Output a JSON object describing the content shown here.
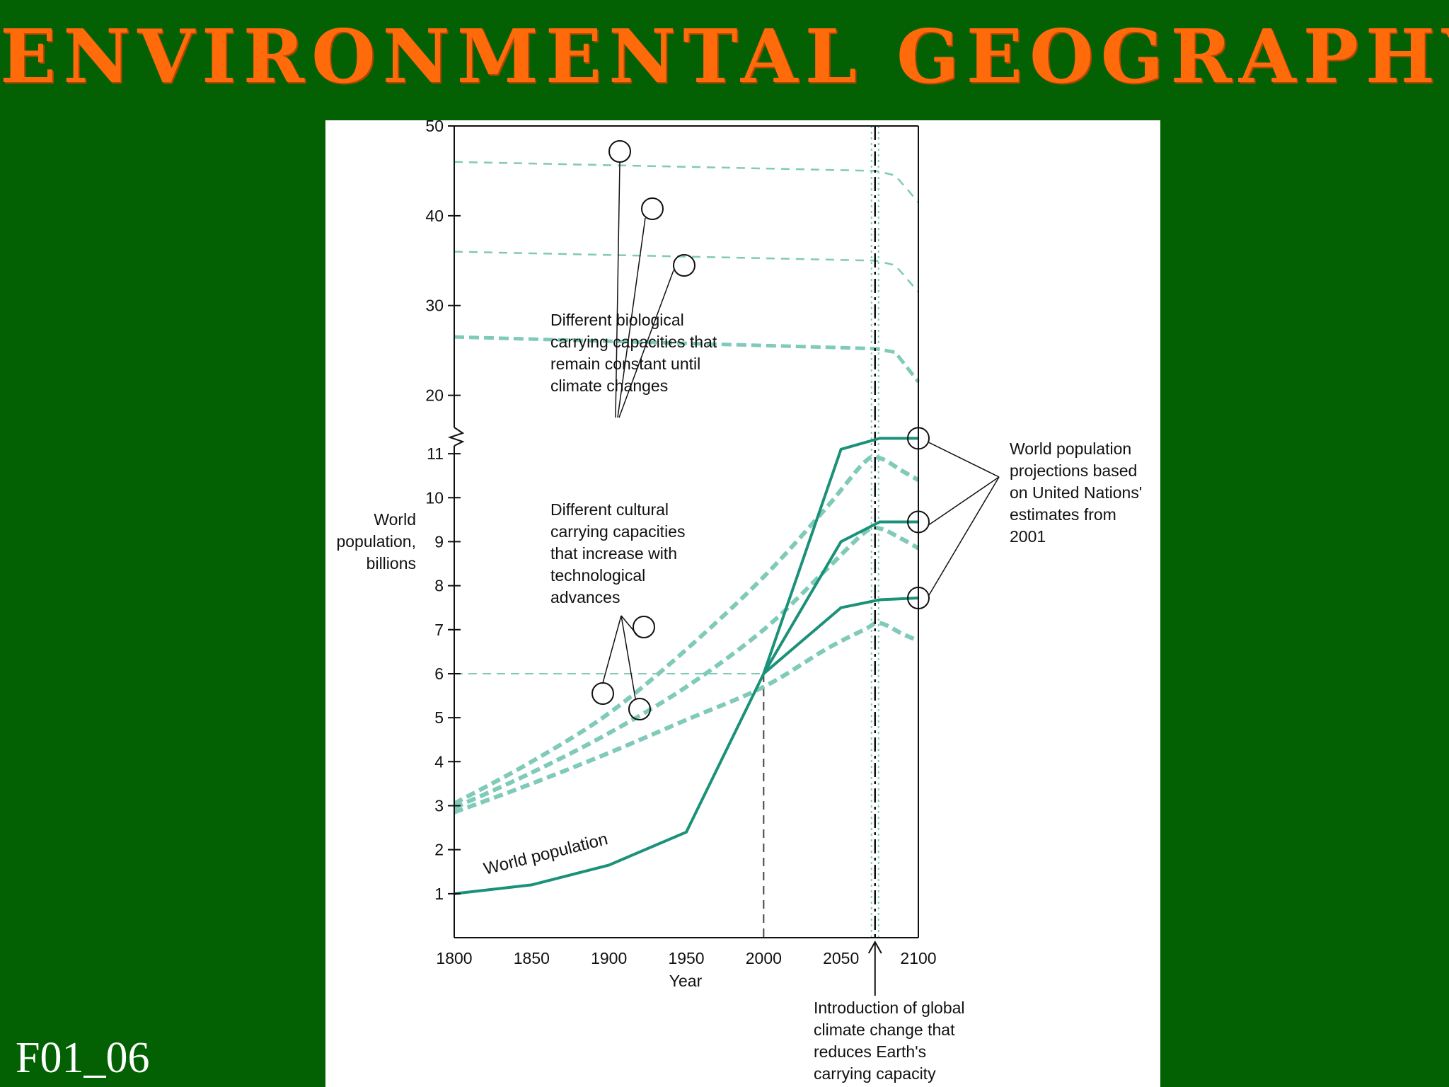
{
  "slide": {
    "title": "ENVIRONMENTAL GEOGRAPHY",
    "code": "F01_06"
  },
  "colors": {
    "background": "#036103",
    "title": "#ff6a0a",
    "series_solid": "#1a9178",
    "series_dashed": "#7fcab8"
  },
  "chart_data": {
    "type": "line",
    "xlabel": "Year",
    "ylabel": [
      "World",
      "population,",
      "billions"
    ],
    "x_ticks": [
      1800,
      1850,
      1900,
      1950,
      2000,
      2050,
      2100
    ],
    "y_ticks_lower": [
      1,
      2,
      3,
      4,
      5,
      6,
      7,
      8,
      9,
      10,
      11
    ],
    "y_ticks_upper": [
      20,
      30,
      40,
      50
    ],
    "xlim": [
      1800,
      2100
    ],
    "ylim_lower": [
      0,
      11.5
    ],
    "ylim_upper": [
      15,
      50
    ],
    "axis_break": "between 11 and 20",
    "world_population": {
      "label": "World population",
      "points": [
        [
          1800,
          1.0
        ],
        [
          1850,
          1.2
        ],
        [
          1900,
          1.65
        ],
        [
          1950,
          2.4
        ],
        [
          1975,
          4.2
        ],
        [
          2000,
          6.0
        ]
      ]
    },
    "projections": [
      {
        "points": [
          [
            2000,
            6.0
          ],
          [
            2050,
            11.1
          ],
          [
            2075,
            11.35
          ],
          [
            2100,
            11.35
          ]
        ]
      },
      {
        "points": [
          [
            2000,
            6.0
          ],
          [
            2050,
            9.0
          ],
          [
            2075,
            9.45
          ],
          [
            2100,
            9.45
          ]
        ]
      },
      {
        "points": [
          [
            2000,
            6.0
          ],
          [
            2050,
            7.5
          ],
          [
            2075,
            7.68
          ],
          [
            2100,
            7.72
          ]
        ]
      }
    ],
    "cultural_capacities": [
      {
        "points": [
          [
            1800,
            3.05
          ],
          [
            1850,
            4.0
          ],
          [
            1900,
            5.1
          ],
          [
            1950,
            6.55
          ],
          [
            2000,
            8.2
          ],
          [
            2040,
            9.75
          ],
          [
            2065,
            10.8
          ],
          [
            2075,
            10.9
          ],
          [
            2090,
            10.6
          ],
          [
            2100,
            10.4
          ]
        ]
      },
      {
        "points": [
          [
            1800,
            2.95
          ],
          [
            1850,
            3.75
          ],
          [
            1900,
            4.65
          ],
          [
            1950,
            5.7
          ],
          [
            2000,
            7.0
          ],
          [
            2040,
            8.35
          ],
          [
            2065,
            9.2
          ],
          [
            2075,
            9.3
          ],
          [
            2090,
            9.05
          ],
          [
            2100,
            8.85
          ]
        ]
      },
      {
        "points": [
          [
            1800,
            2.85
          ],
          [
            1850,
            3.5
          ],
          [
            1900,
            4.2
          ],
          [
            1950,
            4.95
          ],
          [
            2000,
            5.7
          ],
          [
            2040,
            6.55
          ],
          [
            2065,
            7.0
          ],
          [
            2075,
            7.15
          ],
          [
            2090,
            6.9
          ],
          [
            2100,
            6.75
          ]
        ]
      }
    ],
    "biological_capacities": [
      {
        "points": [
          [
            1800,
            46.0
          ],
          [
            2072,
            45.0
          ],
          [
            2085,
            44.5
          ],
          [
            2100,
            41.5
          ]
        ]
      },
      {
        "points": [
          [
            1800,
            36.0
          ],
          [
            2072,
            35.0
          ],
          [
            2085,
            34.5
          ],
          [
            2100,
            31.5
          ]
        ]
      },
      {
        "points": [
          [
            1800,
            26.5
          ],
          [
            2072,
            25.2
          ],
          [
            2085,
            24.8
          ],
          [
            2100,
            21.5
          ]
        ]
      }
    ],
    "reference_lines": {
      "year_2000": 2000,
      "population_6": 6,
      "climate_change_year": 2072
    },
    "annotations": {
      "biological": [
        "Different biological",
        "carrying capacities that",
        "remain constant until",
        "climate changes"
      ],
      "cultural": [
        "Different cultural",
        "carrying capacities",
        "that increase with",
        "technological",
        "advances"
      ],
      "projections": [
        "World population",
        "projections based",
        "on United Nations'",
        "estimates from",
        "2001"
      ],
      "climate": [
        "Introduction of global",
        "climate change that",
        "reduces Earth's",
        "carrying capacity"
      ]
    }
  }
}
